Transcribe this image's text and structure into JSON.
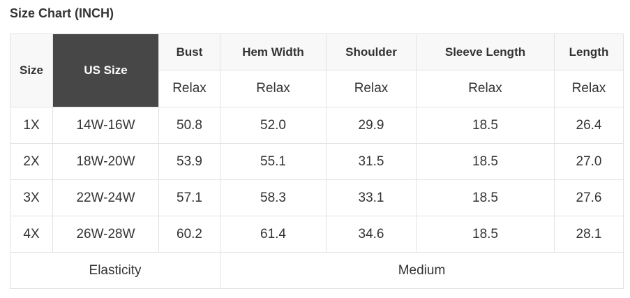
{
  "title": "Size Chart (INCH)",
  "headers": {
    "size": "Size",
    "us_size": "US Size",
    "bust": "Bust",
    "hem": "Hem Width",
    "shoulder": "Shoulder",
    "sleeve": "Sleeve Length",
    "length": "Length"
  },
  "sub": "Relax",
  "rows": [
    [
      "1X",
      "14W-16W",
      "50.8",
      "52.0",
      "29.9",
      "18.5",
      "26.4"
    ],
    [
      "2X",
      "18W-20W",
      "53.9",
      "55.1",
      "31.5",
      "18.5",
      "27.0"
    ],
    [
      "3X",
      "22W-24W",
      "57.1",
      "58.3",
      "33.1",
      "18.5",
      "27.6"
    ],
    [
      "4X",
      "26W-28W",
      "60.2",
      "61.4",
      "34.6",
      "18.5",
      "28.1"
    ]
  ],
  "footer": {
    "label": "Elasticity",
    "value": "Medium"
  },
  "colors": {
    "header_bg": "#f8f8f8",
    "us_size_bg": "#474747",
    "border": "#e2e2e2"
  }
}
